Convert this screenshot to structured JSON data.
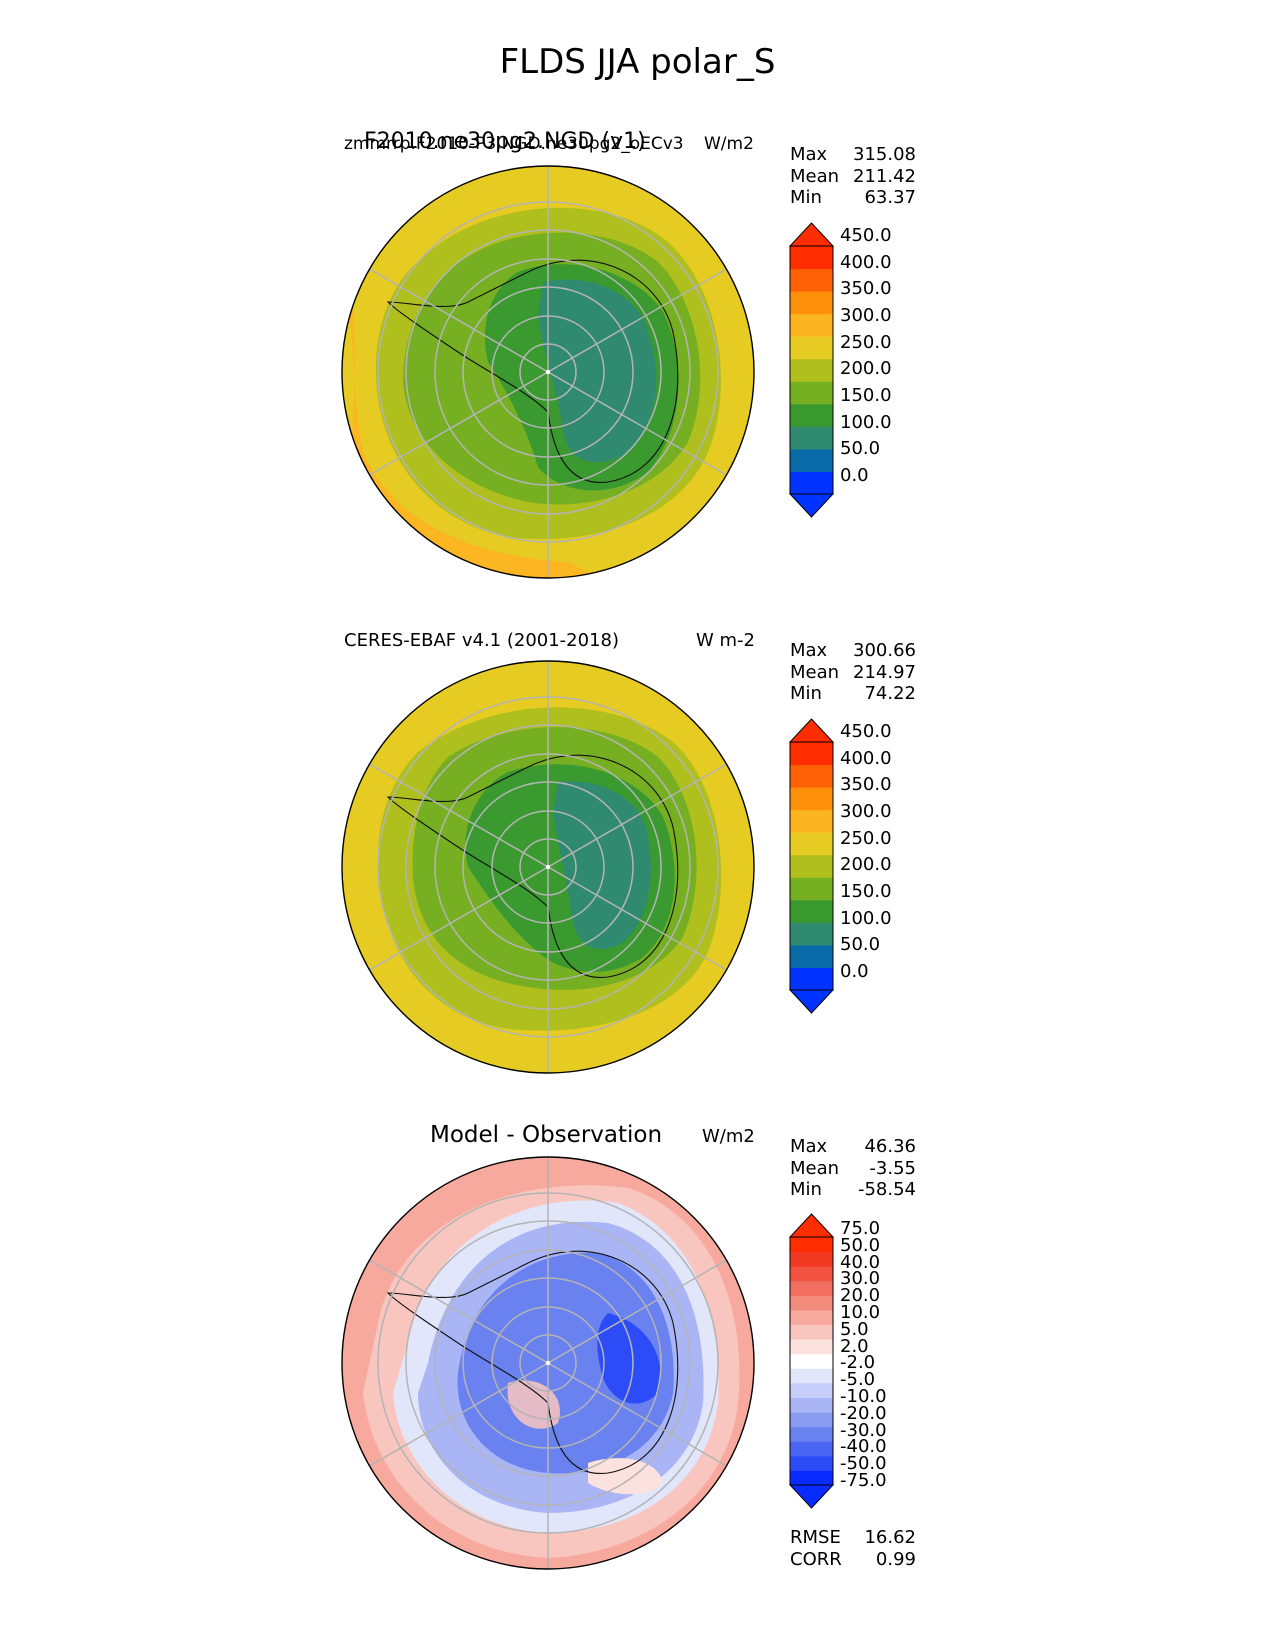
{
  "title": "FLDS JJA polar_S",
  "panels": [
    {
      "id": "test",
      "left_label": "zmmrrp.F2010-P3.NGD.ne30pg2_oECv3",
      "left_label_overlay": "F2010.ne30pg2.NGD (v1)",
      "right_label": "W/m2",
      "stats": [
        {
          "k": "Max",
          "v": "315.08"
        },
        {
          "k": "Mean",
          "v": "211.42"
        },
        {
          "k": "Min",
          "v": "63.37"
        }
      ],
      "colorbar": {
        "ticks": [
          "450.0",
          "400.0",
          "350.0",
          "300.0",
          "250.0",
          "200.0",
          "150.0",
          "100.0",
          "50.0",
          "0.0"
        ],
        "colors": [
          "#0033ff",
          "#0a6aa8",
          "#2f8a6f",
          "#3a9a30",
          "#76b022",
          "#aebf1e",
          "#e6cb22",
          "#fdb421",
          "#fd8f0b",
          "#fd6005",
          "#ff2d00"
        ],
        "over": "#ff2d00",
        "under": "#0033ff"
      }
    },
    {
      "id": "ref",
      "left_label": "CERES-EBAF v4.1 (2001-2018)",
      "right_label": "W m-2",
      "stats": [
        {
          "k": "Max",
          "v": "300.66"
        },
        {
          "k": "Mean",
          "v": "214.97"
        },
        {
          "k": "Min",
          "v": "74.22"
        }
      ],
      "colorbar": {
        "ticks": [
          "450.0",
          "400.0",
          "350.0",
          "300.0",
          "250.0",
          "200.0",
          "150.0",
          "100.0",
          "50.0",
          "0.0"
        ],
        "colors": [
          "#0033ff",
          "#0a6aa8",
          "#2f8a6f",
          "#3a9a30",
          "#76b022",
          "#aebf1e",
          "#e6cb22",
          "#fdb421",
          "#fd8f0b",
          "#fd6005",
          "#ff2d00"
        ],
        "over": "#ff2d00",
        "under": "#0033ff"
      }
    },
    {
      "id": "diff",
      "center_label": "Model - Observation",
      "right_label": "W/m2",
      "stats": [
        {
          "k": "Max",
          "v": "46.36"
        },
        {
          "k": "Mean",
          "v": "-3.55"
        },
        {
          "k": "Min",
          "v": "-58.54"
        }
      ],
      "extra": [
        {
          "k": "RMSE",
          "v": "16.62"
        },
        {
          "k": "CORR",
          "v": "0.99"
        }
      ],
      "colorbar": {
        "ticks": [
          "75.0",
          "50.0",
          "40.0",
          "30.0",
          "20.0",
          "10.0",
          "5.0",
          "2.0",
          "-2.0",
          "-5.0",
          "-10.0",
          "-20.0",
          "-30.0",
          "-40.0",
          "-50.0",
          "-75.0"
        ],
        "colors": [
          "#0a2bff",
          "#2b4cf7",
          "#4a66f2",
          "#6a82f0",
          "#8a9cf2",
          "#a9b5f5",
          "#c6cdf8",
          "#e2e6fb",
          "#ffffff",
          "#fbe2df",
          "#f9c6bf",
          "#f7a99e",
          "#f48c7e",
          "#f26f5f",
          "#f25240",
          "#f23a22",
          "#ff2d00"
        ],
        "over": "#ff2d00",
        "under": "#0a2bff"
      }
    }
  ]
}
